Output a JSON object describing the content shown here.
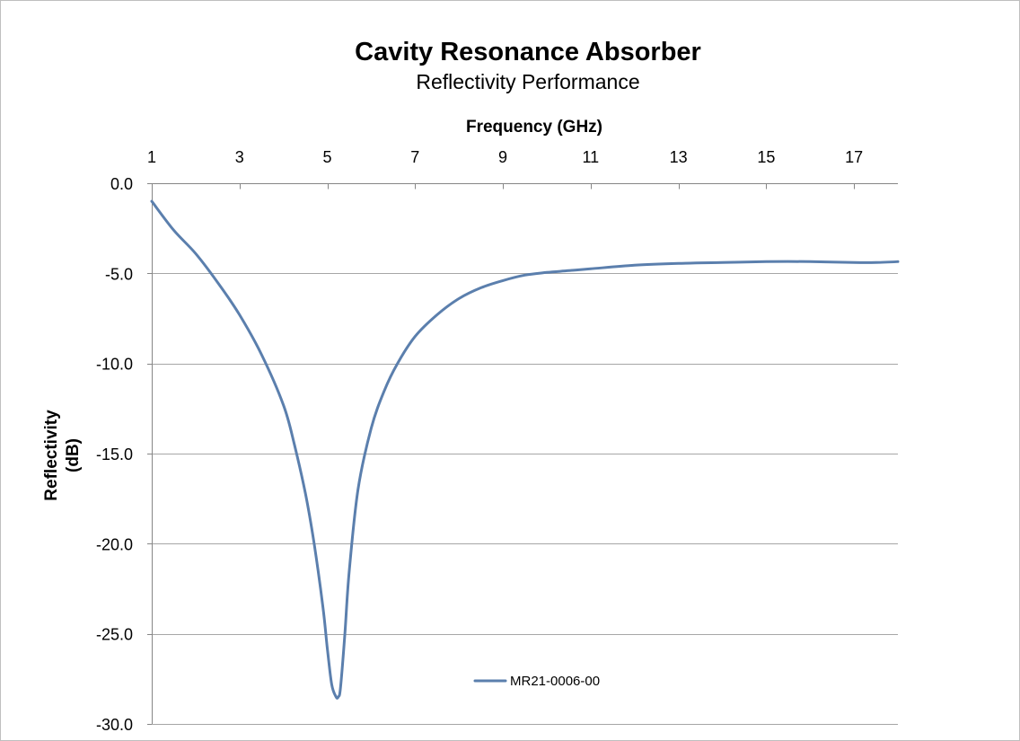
{
  "chart_data": {
    "type": "line",
    "title": "Cavity Resonance Absorber",
    "subtitle": "Reflectivity Performance",
    "xlabel": "Frequency (GHz)",
    "ylabel_lines": [
      "Reflectivity",
      "(dB)"
    ],
    "xlim": [
      1,
      18
    ],
    "ylim": [
      -30,
      0
    ],
    "x_axis_position": "top",
    "y_axis_reversed": true,
    "x_ticks": [
      1,
      3,
      5,
      7,
      9,
      11,
      13,
      15,
      17
    ],
    "x_tick_labels": [
      "1",
      "3",
      "5",
      "7",
      "9",
      "11",
      "13",
      "15",
      "17"
    ],
    "y_ticks": [
      0,
      -5,
      -10,
      -15,
      -20,
      -25,
      -30
    ],
    "y_tick_labels": [
      "0.0",
      "-5.0",
      "-10.0",
      "-15.0",
      "-20.0",
      "-25.0",
      "-30.0"
    ],
    "grid": "horizontal",
    "legend_position": "bottom-center",
    "colors": {
      "series": "#5b7fad",
      "grid": "#a6a6a6",
      "axis": "#868686",
      "border": "#bfbfbf"
    },
    "series": [
      {
        "name": "MR21-0006-00",
        "x": [
          1.0,
          1.5,
          2.0,
          2.5,
          3.0,
          3.5,
          4.0,
          4.25,
          4.5,
          4.7,
          4.9,
          5.0,
          5.1,
          5.2,
          5.25,
          5.3,
          5.4,
          5.5,
          5.7,
          6.0,
          6.3,
          6.6,
          7.0,
          7.5,
          8.0,
          8.5,
          9.0,
          9.5,
          10.0,
          10.5,
          11.0,
          12.0,
          13.0,
          14.0,
          15.0,
          16.0,
          17.0,
          17.5,
          18.0
        ],
        "y": [
          -1.0,
          -2.6,
          -3.9,
          -5.5,
          -7.3,
          -9.5,
          -12.3,
          -14.5,
          -17.2,
          -20.0,
          -23.5,
          -25.8,
          -27.8,
          -28.5,
          -28.5,
          -28.0,
          -25.0,
          -21.5,
          -17.0,
          -13.6,
          -11.5,
          -10.0,
          -8.5,
          -7.3,
          -6.4,
          -5.8,
          -5.4,
          -5.1,
          -4.95,
          -4.85,
          -4.75,
          -4.55,
          -4.45,
          -4.4,
          -4.35,
          -4.35,
          -4.4,
          -4.4,
          -4.35
        ]
      }
    ]
  }
}
